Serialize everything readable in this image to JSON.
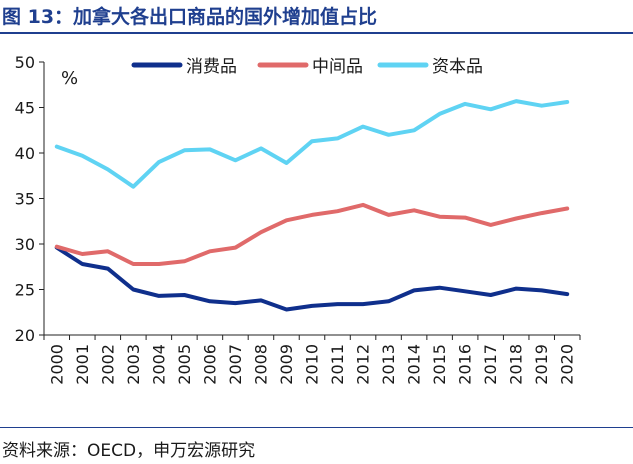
{
  "title": "图 13：加拿大各出口商品的国外增加值占比",
  "source": "资料来源：OECD，申万宏源研究",
  "chart_data": {
    "type": "line",
    "unit": "%",
    "x": [
      "2000",
      "2001",
      "2002",
      "2003",
      "2004",
      "2005",
      "2006",
      "2007",
      "2008",
      "2009",
      "2010",
      "2011",
      "2012",
      "2013",
      "2014",
      "2015",
      "2016",
      "2017",
      "2018",
      "2019",
      "2020"
    ],
    "ylim": [
      20,
      50
    ],
    "yticks": [
      20,
      25,
      30,
      35,
      40,
      45,
      50
    ],
    "grid": false,
    "legend_position": "top",
    "series": [
      {
        "name": "消费品",
        "color": "#0f2f8c",
        "values": [
          29.6,
          27.8,
          27.3,
          25.0,
          24.3,
          24.4,
          23.7,
          23.5,
          23.8,
          22.8,
          23.2,
          23.4,
          23.4,
          23.7,
          24.9,
          25.2,
          24.8,
          24.4,
          25.1,
          24.9,
          24.5
        ]
      },
      {
        "name": "中间品",
        "color": "#e06a6a",
        "values": [
          29.7,
          28.9,
          29.2,
          27.8,
          27.8,
          28.1,
          29.2,
          29.6,
          31.3,
          32.6,
          33.2,
          33.6,
          34.3,
          33.2,
          33.7,
          33.0,
          32.9,
          32.1,
          32.8,
          33.4,
          33.9
        ]
      },
      {
        "name": "资本品",
        "color": "#5fd3f3",
        "values": [
          40.7,
          39.7,
          38.2,
          36.3,
          39.0,
          40.3,
          40.4,
          39.2,
          40.5,
          38.9,
          41.3,
          41.6,
          42.9,
          42.0,
          42.5,
          44.3,
          45.4,
          44.8,
          45.7,
          45.2,
          45.6
        ]
      }
    ]
  }
}
